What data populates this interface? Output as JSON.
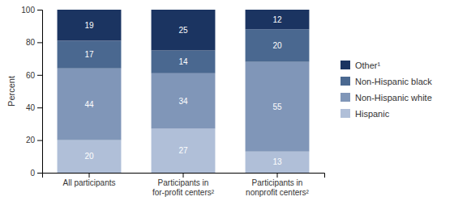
{
  "chart_data": {
    "type": "bar",
    "stacked": true,
    "data_labels": true,
    "ylabel": "Percent",
    "categories": [
      "All participants",
      "Participants in\nfor-profit centers²",
      "Participants in\nnonprofit centers²"
    ],
    "series": [
      {
        "name": "Hispanic",
        "color": "#b0bfd8",
        "values": [
          20,
          27,
          13
        ]
      },
      {
        "name": "Non-Hispanic white",
        "color": "#8096b8",
        "values": [
          44,
          34,
          55
        ]
      },
      {
        "name": "Non-Hispanic black",
        "color": "#4a6890",
        "values": [
          17,
          14,
          20
        ]
      },
      {
        "name": "Other¹",
        "color": "#1b3461",
        "values": [
          19,
          25,
          12
        ]
      }
    ],
    "ylim": [
      0,
      100
    ],
    "yticks": [
      0,
      20,
      40,
      60,
      80,
      100
    ],
    "grid": false,
    "legend": "right"
  }
}
